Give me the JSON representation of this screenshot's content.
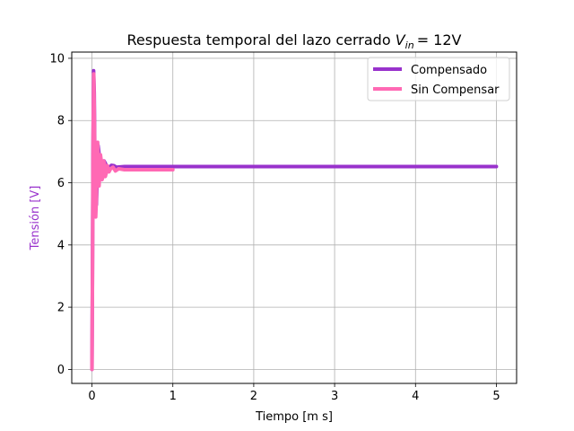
{
  "chart_data": {
    "type": "line",
    "title": "Respuesta temporal del lazo cerrado",
    "title_math": {
      "variable": "V",
      "subscript": "in",
      "equals_value": "= 12V"
    },
    "xlabel": "Tiempo [m s]",
    "ylabel": "Tensión [V]",
    "ylabel_color": "#9932cc",
    "xlim": [
      -0.25,
      5.25
    ],
    "ylim": [
      -0.45,
      10.2
    ],
    "xticks": [
      0,
      1,
      2,
      3,
      4,
      5
    ],
    "xtick_labels": [
      "0",
      "1",
      "2",
      "3",
      "4",
      "5"
    ],
    "yticks": [
      0,
      2,
      4,
      6,
      8,
      10
    ],
    "ytick_labels": [
      "0",
      "2",
      "4",
      "6",
      "8",
      "10"
    ],
    "grid": true,
    "legend_position": "top-right",
    "series": [
      {
        "name": "Compensado",
        "color": "#9932cc",
        "points": [
          [
            0,
            0
          ],
          [
            0.005,
            2.5
          ],
          [
            0.012,
            6.8
          ],
          [
            0.02,
            9.6
          ],
          [
            0.028,
            8.9
          ],
          [
            0.035,
            7.0
          ],
          [
            0.045,
            5.4
          ],
          [
            0.055,
            5.3
          ],
          [
            0.065,
            6.2
          ],
          [
            0.075,
            7.2
          ],
          [
            0.085,
            7.0
          ],
          [
            0.095,
            6.4
          ],
          [
            0.11,
            6.2
          ],
          [
            0.13,
            6.45
          ],
          [
            0.15,
            6.7
          ],
          [
            0.17,
            6.6
          ],
          [
            0.19,
            6.45
          ],
          [
            0.21,
            6.48
          ],
          [
            0.24,
            6.56
          ],
          [
            0.27,
            6.55
          ],
          [
            0.3,
            6.5
          ],
          [
            0.4,
            6.52
          ],
          [
            0.6,
            6.52
          ],
          [
            1.0,
            6.52
          ],
          [
            2.0,
            6.52
          ],
          [
            3.0,
            6.52
          ],
          [
            4.0,
            6.52
          ],
          [
            5.0,
            6.52
          ]
        ]
      },
      {
        "name": "Sin Compensar",
        "color": "#ff69b4",
        "points": [
          [
            0,
            0
          ],
          [
            0.006,
            3.0
          ],
          [
            0.014,
            7.5
          ],
          [
            0.022,
            9.5
          ],
          [
            0.03,
            8.0
          ],
          [
            0.038,
            5.8
          ],
          [
            0.046,
            4.9
          ],
          [
            0.055,
            5.5
          ],
          [
            0.063,
            7.0
          ],
          [
            0.07,
            7.3
          ],
          [
            0.08,
            6.5
          ],
          [
            0.088,
            5.9
          ],
          [
            0.095,
            6.3
          ],
          [
            0.105,
            6.9
          ],
          [
            0.115,
            6.7
          ],
          [
            0.125,
            6.1
          ],
          [
            0.135,
            6.2
          ],
          [
            0.145,
            6.7
          ],
          [
            0.155,
            6.6
          ],
          [
            0.165,
            6.2
          ],
          [
            0.175,
            6.3
          ],
          [
            0.19,
            6.55
          ],
          [
            0.21,
            6.35
          ],
          [
            0.23,
            6.45
          ],
          [
            0.26,
            6.5
          ],
          [
            0.29,
            6.38
          ],
          [
            0.33,
            6.45
          ],
          [
            0.4,
            6.42
          ],
          [
            0.6,
            6.42
          ],
          [
            0.8,
            6.42
          ],
          [
            1.0,
            6.42
          ]
        ]
      }
    ]
  }
}
